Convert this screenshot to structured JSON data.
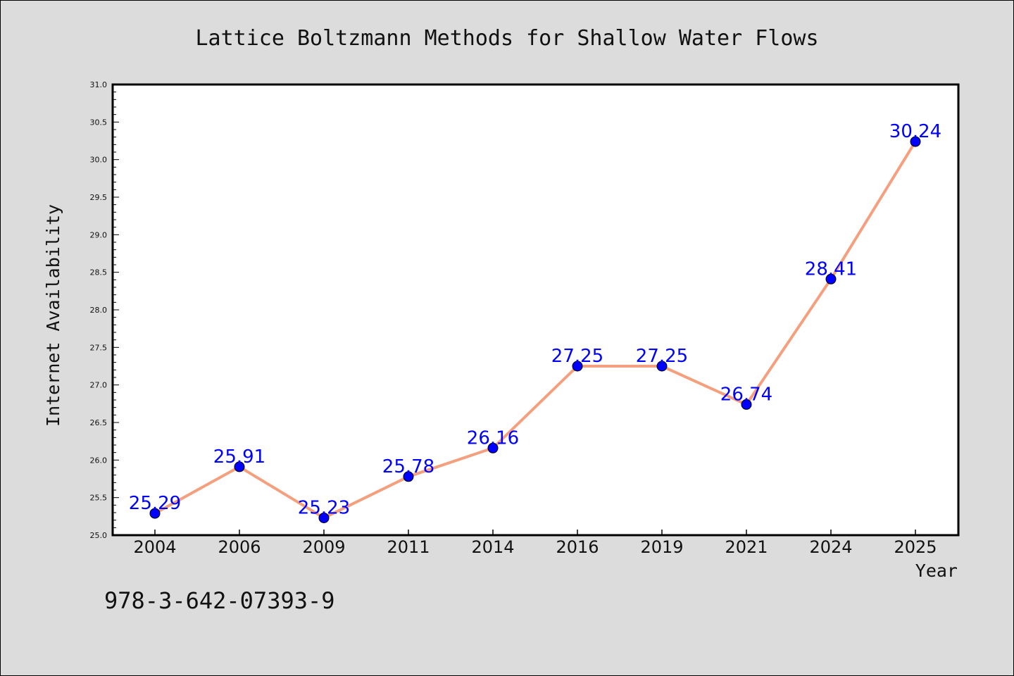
{
  "chart_data": {
    "type": "line",
    "title": "Lattice Boltzmann Methods for Shallow Water Flows",
    "xlabel": "Year",
    "ylabel": "Internet Availability",
    "categories": [
      "2004",
      "2006",
      "2009",
      "2011",
      "2014",
      "2016",
      "2019",
      "2021",
      "2024",
      "2025"
    ],
    "series": [
      {
        "values": [
          25.29,
          25.91,
          25.23,
          25.78,
          26.16,
          27.25,
          27.25,
          26.74,
          28.41,
          30.24
        ],
        "data_labels": [
          "25.29",
          "25.91",
          "25.23",
          "25.78",
          "26.16",
          "27.25",
          "27.25",
          "26.74",
          "28.41",
          "30.24"
        ]
      }
    ],
    "ylim": [
      25.0,
      31.0
    ],
    "yticks": [
      "25.0",
      "25.5",
      "26.0",
      "26.5",
      "27.0",
      "27.5",
      "28.0",
      "28.5",
      "29.0",
      "29.5",
      "30.0",
      "30.5",
      "31.0"
    ],
    "grid": false,
    "line_color": "#f4a07e",
    "marker_color": "#0000ff",
    "label_color": "#0000ff",
    "plot_background": "#ffffff",
    "page_background": "#dcdcdc"
  },
  "footnote": "978-3-642-07393-9"
}
